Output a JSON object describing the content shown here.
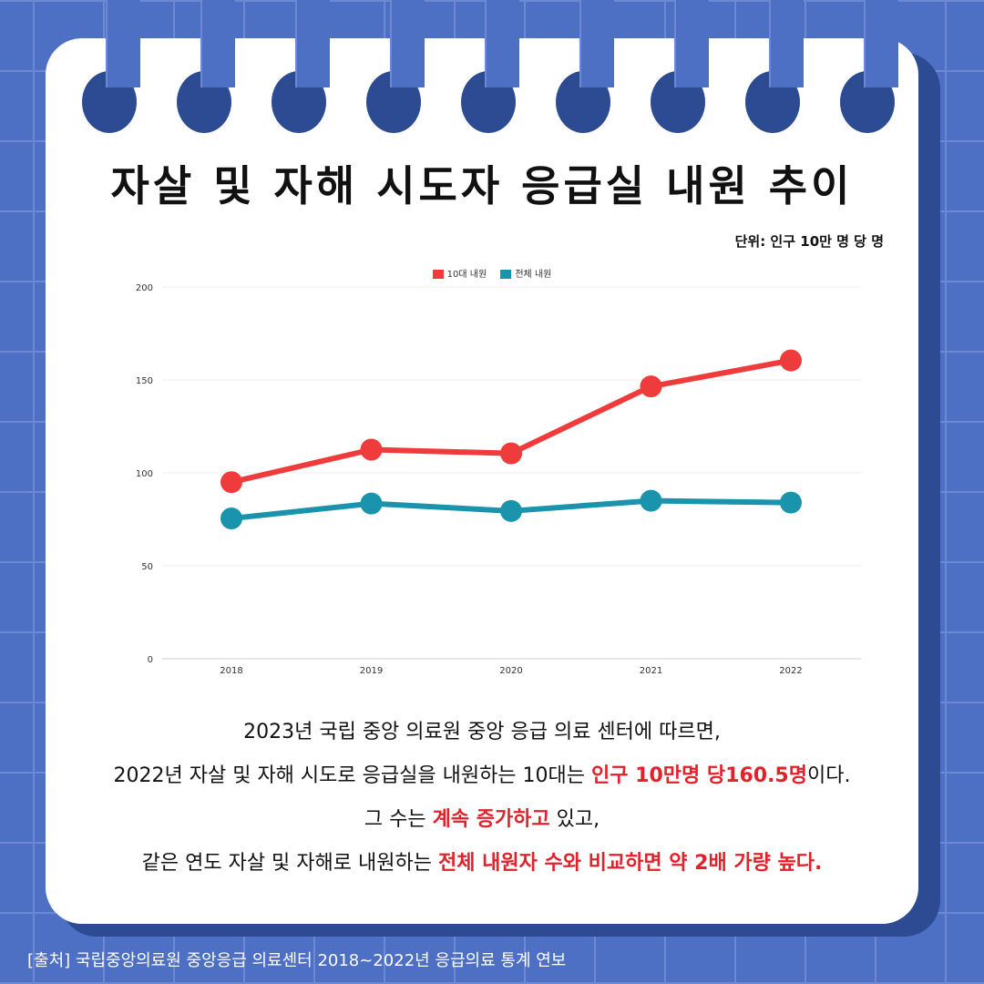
{
  "title": "자살 및 자해 시도자 응급실 내원 추이",
  "unit_label": "단위: 인구 10만 명 당 명",
  "colors": {
    "teen": "#ef3b3b",
    "total": "#1a93ad",
    "background": "#4d6fc4",
    "card": "#ffffff"
  },
  "chart_data": {
    "type": "line",
    "title": "자살 및 자해 시도자 응급실 내원 추이",
    "categories": [
      "2018",
      "2019",
      "2020",
      "2021",
      "2022"
    ],
    "series": [
      {
        "name": "10대 내원",
        "values": [
          95,
          112.5,
          110.5,
          146.5,
          160.5
        ]
      },
      {
        "name": "전체 내원",
        "values": [
          75.5,
          83.5,
          79.5,
          85,
          84
        ]
      }
    ],
    "yticks": [
      "0",
      "50",
      "100",
      "150",
      "200"
    ],
    "ylim": [
      0,
      200
    ],
    "grid": true,
    "legend": "top-center"
  },
  "body": {
    "line1": "2023년 국립 중앙 의료원 중앙 응급 의료 센터에 따르면,",
    "line2_a": "2022년 자살 및 자해 시도로 응급실을 내원하는 10대는 ",
    "line2_hl": "인구 10만명 당160.5명",
    "line2_b": "이다.",
    "line3_a": "그 수는 ",
    "line3_hl": "계속 증가하고",
    "line3_b": " 있고,",
    "line4_a": "같은 연도 자살 및 자해로 내원하는 ",
    "line4_hl": "전체 내원자 수와 비교하면 약 2배 가량 높다."
  },
  "source": "[출처] 국립중앙의료원 중앙응급 의료센터 2018~2022년 응급의료 통계 연보"
}
